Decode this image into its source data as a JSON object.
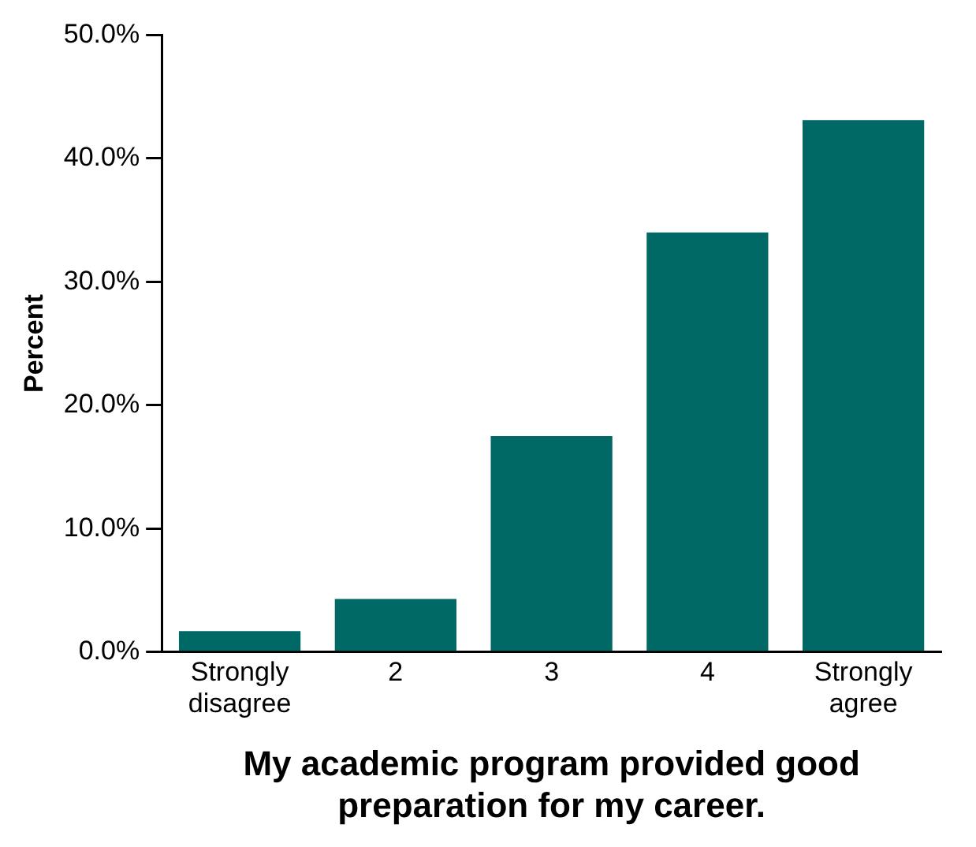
{
  "chart_data": {
    "type": "bar",
    "xlabel": "My academic program provided good preparation for my career.",
    "ylabel": "Percent",
    "categories": [
      "Strongly disagree",
      "2",
      "3",
      "4",
      "Strongly agree"
    ],
    "values": [
      1.7,
      4.3,
      17.5,
      34.0,
      43.1
    ],
    "color": "#006966",
    "ylim": [
      0,
      50
    ],
    "yticks": [
      {
        "value": 0,
        "label": "0.0%"
      },
      {
        "value": 10,
        "label": "10.0%"
      },
      {
        "value": 20,
        "label": "20.0%"
      },
      {
        "value": 30,
        "label": "30.0%"
      },
      {
        "value": 40,
        "label": "40.0%"
      },
      {
        "value": 50,
        "label": "50.0%"
      }
    ],
    "grid": false,
    "legend": false
  }
}
